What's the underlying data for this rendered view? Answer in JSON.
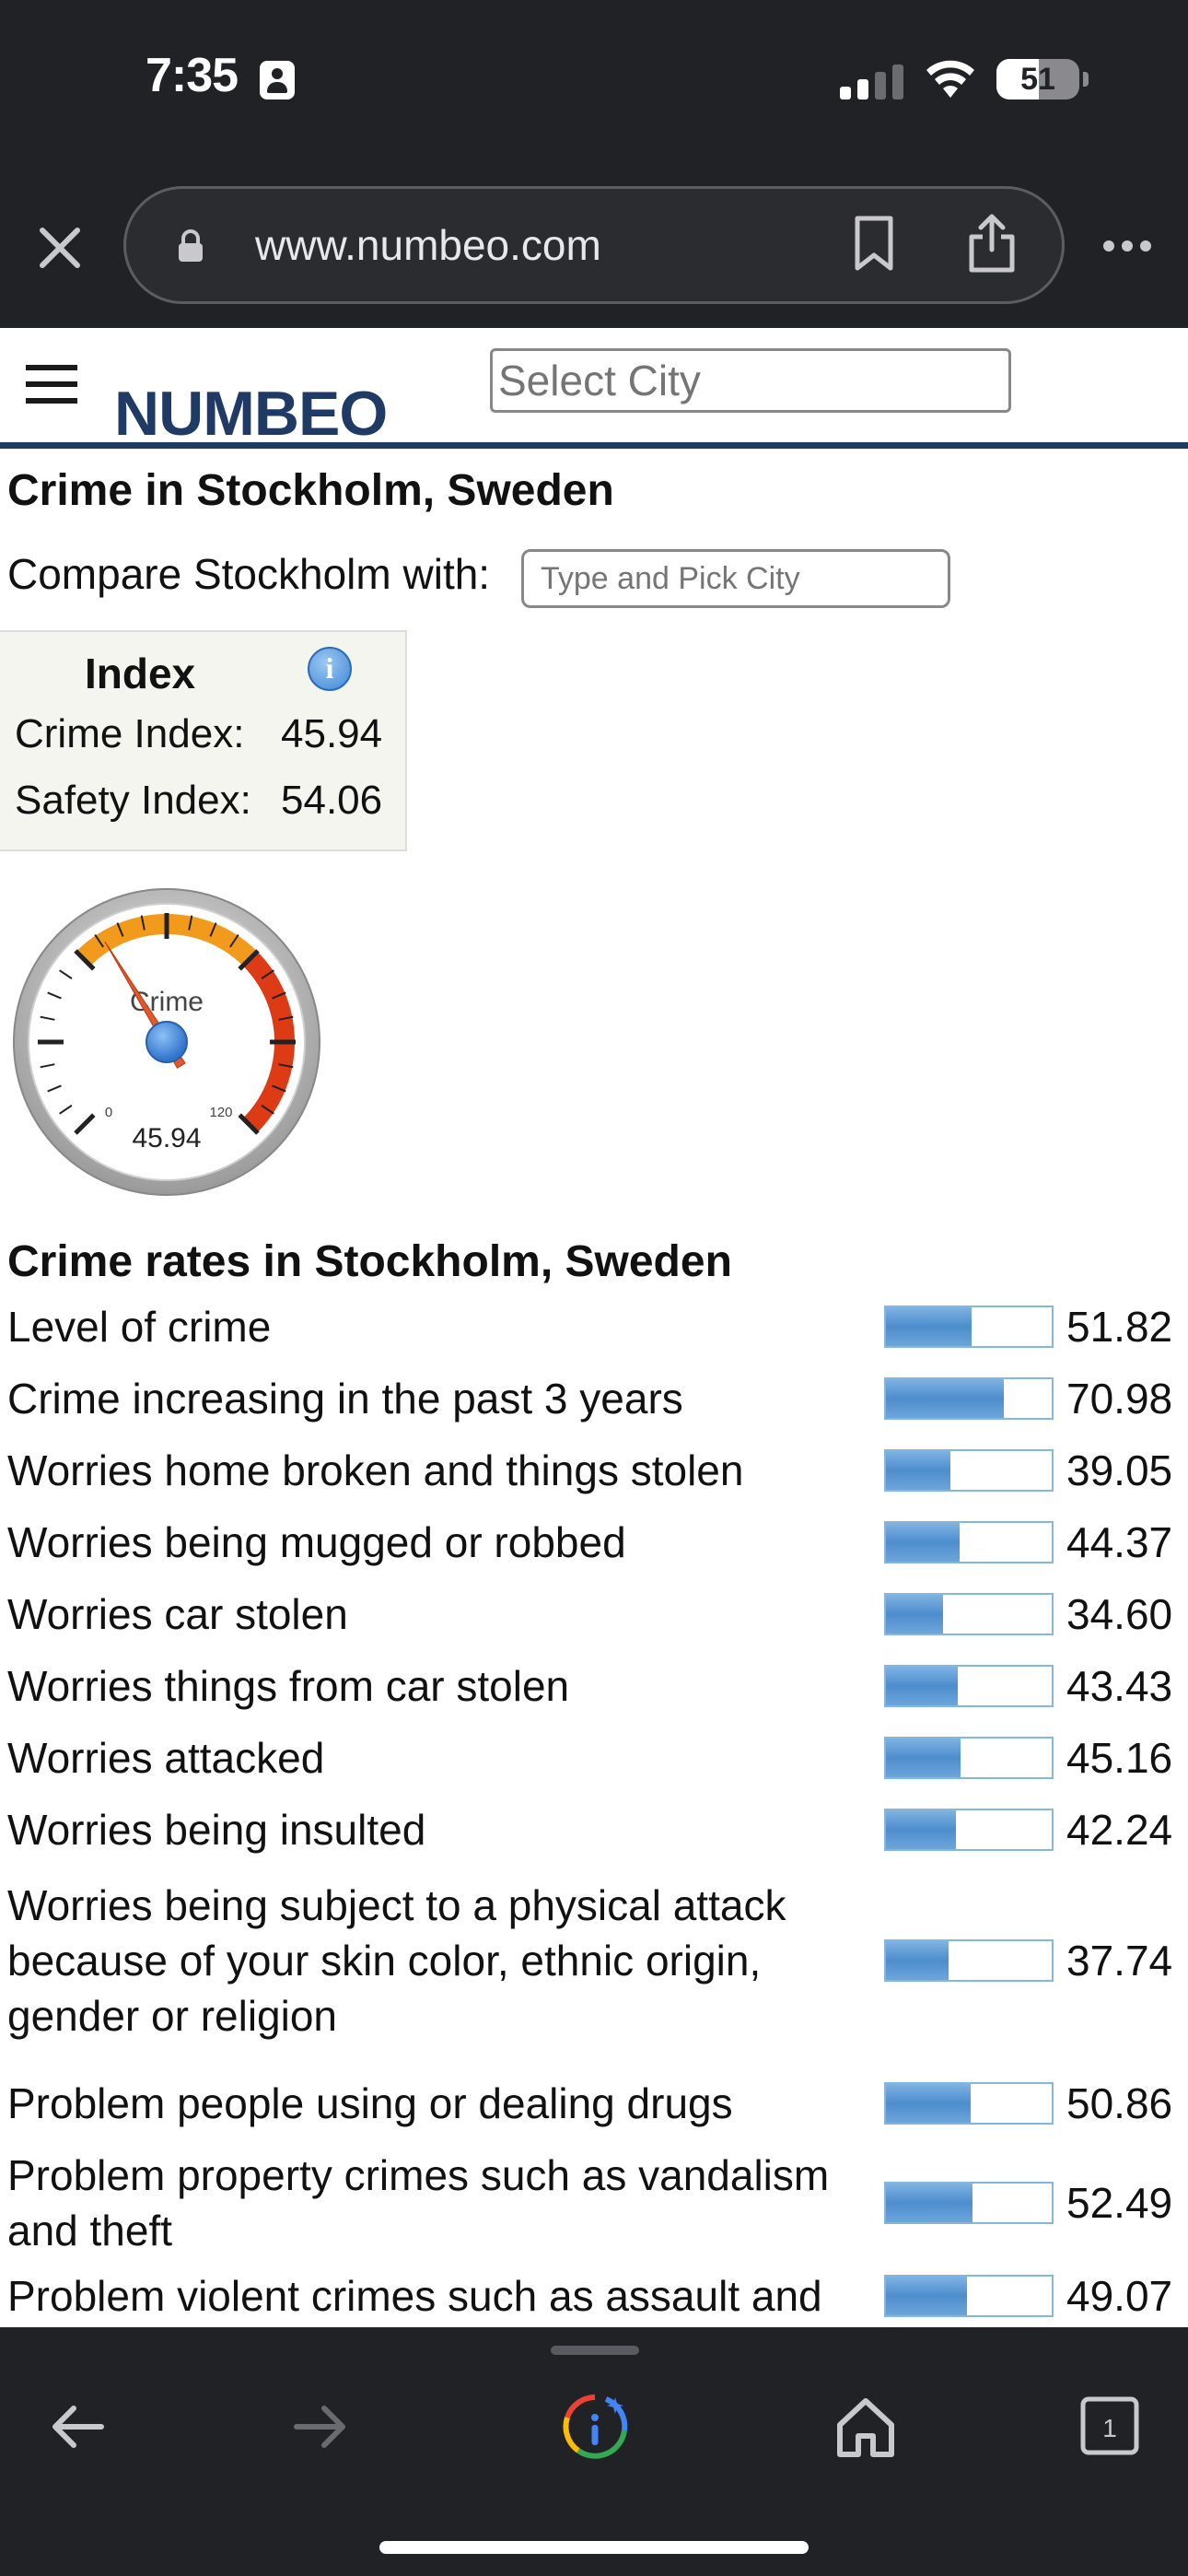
{
  "status_bar": {
    "time": "7:35",
    "battery": "51",
    "battery_level": 0.51
  },
  "browser": {
    "url": "www.numbeo.com"
  },
  "site": {
    "logo": "NUMBEO",
    "select_city_placeholder": "Select City"
  },
  "page": {
    "title": "Crime in Stockholm, Sweden",
    "compare_label": "Compare Stockholm with:",
    "compare_placeholder": "Type and Pick City"
  },
  "index": {
    "heading": "Index",
    "crime_label": "Crime Index:",
    "crime_value": "45.94",
    "safety_label": "Safety Index:",
    "safety_value": "54.06"
  },
  "gauge": {
    "label": "Crime",
    "value": "45.94",
    "min": "0",
    "max": "120",
    "value_num": 45.94,
    "max_num": 120
  },
  "crime_rates": {
    "title": "Crime rates in Stockholm, Sweden",
    "items": [
      {
        "label": "Level of crime",
        "value": "51.82",
        "pct": 51.82
      },
      {
        "label": "Crime increasing in the past 3 years",
        "value": "70.98",
        "pct": 70.98
      },
      {
        "label": "Worries home broken and things stolen",
        "value": "39.05",
        "pct": 39.05
      },
      {
        "label": "Worries being mugged or robbed",
        "value": "44.37",
        "pct": 44.37
      },
      {
        "label": "Worries car stolen",
        "value": "34.60",
        "pct": 34.6
      },
      {
        "label": "Worries things from car stolen",
        "value": "43.43",
        "pct": 43.43
      },
      {
        "label": "Worries attacked",
        "value": "45.16",
        "pct": 45.16
      },
      {
        "label": "Worries being insulted",
        "value": "42.24",
        "pct": 42.24
      },
      {
        "label": "Worries being subject to a physical attack because of your skin color, ethnic origin, gender or religion",
        "value": "37.74",
        "pct": 37.74
      },
      {
        "label": "Problem people using or dealing drugs",
        "value": "50.86",
        "pct": 50.86
      },
      {
        "label": "Problem property crimes such as vandalism and theft",
        "value": "52.49",
        "pct": 52.49
      },
      {
        "label": "Problem violent crimes such as assault and",
        "value": "49.07",
        "pct": 49.07
      }
    ]
  },
  "toolbar": {
    "tab_count": "1"
  },
  "colors": {
    "brand": "#1f3a64",
    "bar": "#4d8dcd",
    "gauge_orange": "#f29a1c",
    "gauge_red": "#dd3a16"
  },
  "icons": [
    "close-icon",
    "lock-icon",
    "bookmark-icon",
    "share-icon",
    "more-icon",
    "hamburger-icon",
    "info-icon",
    "back-icon",
    "forward-icon",
    "google-lens-icon",
    "home-icon",
    "tabs-icon"
  ]
}
